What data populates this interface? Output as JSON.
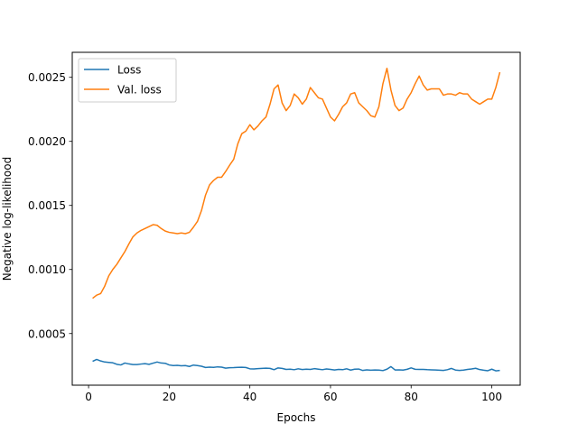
{
  "chart_data": {
    "type": "line",
    "title": "",
    "xlabel": "Epochs",
    "ylabel": "Negative log-likelihood",
    "xlim": [
      -4.05,
      107.05
    ],
    "ylim": [
      9.7e-05,
      0.002695
    ],
    "xticks": [
      0,
      20,
      40,
      60,
      80,
      100
    ],
    "xtick_labels": [
      "0",
      "20",
      "40",
      "60",
      "80",
      "100"
    ],
    "yticks": [
      0.0005,
      0.001,
      0.0015,
      0.002,
      0.0025
    ],
    "ytick_labels": [
      "0.0005",
      "0.0010",
      "0.0015",
      "0.0020",
      "0.0025"
    ],
    "grid": false,
    "legend_position": "top-left",
    "colors": {
      "Loss": "#1f77b4",
      "Val. loss": "#ff7f0e"
    },
    "x": [
      1,
      2,
      3,
      4,
      5,
      6,
      7,
      8,
      9,
      10,
      11,
      12,
      13,
      14,
      15,
      16,
      17,
      18,
      19,
      20,
      21,
      22,
      23,
      24,
      25,
      26,
      27,
      28,
      29,
      30,
      31,
      32,
      33,
      34,
      35,
      36,
      37,
      38,
      39,
      40,
      41,
      42,
      43,
      44,
      45,
      46,
      47,
      48,
      49,
      50,
      51,
      52,
      53,
      54,
      55,
      56,
      57,
      58,
      59,
      60,
      61,
      62,
      63,
      64,
      65,
      66,
      67,
      68,
      69,
      70,
      71,
      72,
      73,
      74,
      75,
      76,
      77,
      78,
      79,
      80,
      81,
      82,
      83,
      84,
      85,
      86,
      87,
      88,
      89,
      90,
      91,
      92,
      93,
      94,
      95,
      96,
      97,
      98,
      99,
      100,
      101,
      102
    ],
    "series": [
      {
        "name": "Loss",
        "values": [
          0.000283,
          0.000298,
          0.000286,
          0.000278,
          0.000275,
          0.000272,
          0.00026,
          0.000255,
          0.00027,
          0.000263,
          0.000258,
          0.000258,
          0.000262,
          0.000265,
          0.00026,
          0.000269,
          0.000278,
          0.00027,
          0.000268,
          0.000255,
          0.00025,
          0.000252,
          0.000248,
          0.00025,
          0.000243,
          0.000254,
          0.00025,
          0.000245,
          0.000235,
          0.000238,
          0.000236,
          0.00024,
          0.000238,
          0.00023,
          0.000233,
          0.000234,
          0.000236,
          0.000237,
          0.000235,
          0.000225,
          0.000224,
          0.000226,
          0.000228,
          0.00023,
          0.000228,
          0.000218,
          0.000232,
          0.000228,
          0.00022,
          0.000222,
          0.000218,
          0.000225,
          0.000219,
          0.000222,
          0.00022,
          0.000226,
          0.000222,
          0.000218,
          0.000224,
          0.00022,
          0.000216,
          0.00022,
          0.000218,
          0.000225,
          0.000215,
          0.000222,
          0.000223,
          0.000212,
          0.000217,
          0.000214,
          0.000216,
          0.000215,
          0.000211,
          0.000222,
          0.000242,
          0.000216,
          0.000217,
          0.000215,
          0.000221,
          0.000232,
          0.000221,
          0.00022,
          0.00022,
          0.000218,
          0.000217,
          0.000216,
          0.000214,
          0.000212,
          0.000218,
          0.000228,
          0.000215,
          0.000212,
          0.000215,
          0.00022,
          0.000224,
          0.000229,
          0.000219,
          0.000214,
          0.00021,
          0.000222,
          0.000209,
          0.000212
        ]
      },
      {
        "name": "Val. loss",
        "values": [
          0.000775,
          0.0008,
          0.000812,
          0.00087,
          0.00095,
          0.001,
          0.00104,
          0.00109,
          0.00114,
          0.0012,
          0.001255,
          0.001285,
          0.001305,
          0.00132,
          0.001335,
          0.00135,
          0.001345,
          0.00132,
          0.0013,
          0.00129,
          0.001285,
          0.00128,
          0.001285,
          0.00128,
          0.00129,
          0.00133,
          0.001375,
          0.00146,
          0.00158,
          0.00166,
          0.001695,
          0.00172,
          0.00172,
          0.001765,
          0.001815,
          0.00186,
          0.00198,
          0.00206,
          0.00208,
          0.00213,
          0.00209,
          0.00212,
          0.00216,
          0.00219,
          0.00229,
          0.00241,
          0.00244,
          0.0023,
          0.00224,
          0.00228,
          0.00237,
          0.00234,
          0.00229,
          0.00233,
          0.00242,
          0.00238,
          0.00234,
          0.00233,
          0.00226,
          0.00219,
          0.00216,
          0.00221,
          0.00227,
          0.0023,
          0.00237,
          0.00238,
          0.0023,
          0.00227,
          0.00224,
          0.0022,
          0.00219,
          0.00227,
          0.00245,
          0.00257,
          0.0024,
          0.00228,
          0.00224,
          0.00226,
          0.00233,
          0.00238,
          0.00245,
          0.00251,
          0.00244,
          0.0024,
          0.00241,
          0.00241,
          0.00241,
          0.00236,
          0.00237,
          0.00237,
          0.00236,
          0.00238,
          0.00237,
          0.00237,
          0.00233,
          0.00231,
          0.00229,
          0.00231,
          0.00233,
          0.00233,
          0.00242,
          0.00254
        ]
      }
    ]
  }
}
